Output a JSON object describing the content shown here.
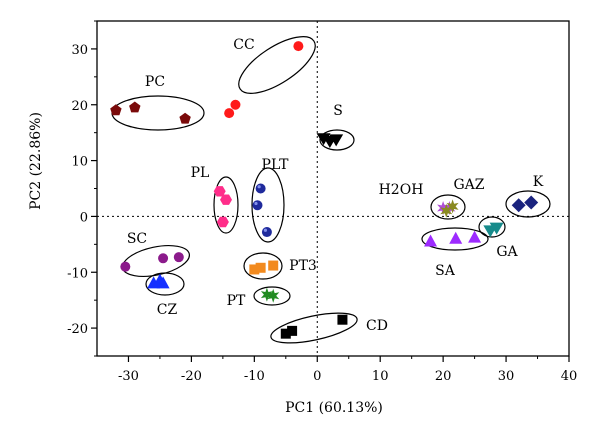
{
  "chart_data": {
    "type": "scatter",
    "xlabel": "PC1 (60.13%)",
    "ylabel": "PC2 (22.86%)",
    "xlim": [
      -35,
      40
    ],
    "ylim": [
      -25,
      35
    ],
    "xticks": [
      -30,
      -20,
      -10,
      0,
      10,
      20,
      30,
      40
    ],
    "yticks": [
      -20,
      -10,
      0,
      10,
      20,
      30
    ],
    "reference_lines": {
      "x": 0,
      "y": 0,
      "style": "dotted"
    },
    "legend": "none",
    "groups": [
      {
        "name": "CC",
        "marker": "circle",
        "color": "#ff1a1a",
        "points": [
          [
            -14,
            18.5
          ],
          [
            -13,
            20
          ],
          [
            -3,
            30.5
          ]
        ]
      },
      {
        "name": "PC",
        "marker": "pentagon",
        "color": "#7a0a0a",
        "points": [
          [
            -32,
            19
          ],
          [
            -29,
            19.5
          ],
          [
            -21,
            17.5
          ]
        ]
      },
      {
        "name": "S",
        "marker": "triangle-down",
        "color": "#000000",
        "points": [
          [
            1,
            14
          ],
          [
            2,
            13.5
          ],
          [
            3,
            13.8
          ]
        ]
      },
      {
        "name": "PL",
        "marker": "hexagon",
        "color": "#ff2d8a",
        "points": [
          [
            -15.5,
            4.5
          ],
          [
            -14.5,
            3
          ],
          [
            -15,
            -1
          ]
        ]
      },
      {
        "name": "PLT",
        "marker": "sphere",
        "color": "#1f2a9c",
        "points": [
          [
            -9,
            5
          ],
          [
            -9.5,
            2
          ],
          [
            -8,
            -2.8
          ]
        ]
      },
      {
        "name": "H2OH",
        "marker": "star",
        "color": "#b04fd6",
        "points": [
          [
            20,
            1.5
          ],
          [
            21,
            1.5
          ]
        ]
      },
      {
        "name": "GAZ",
        "marker": "star",
        "color": "#8a8a20",
        "points": [
          [
            20.5,
            1
          ],
          [
            21.5,
            1.8
          ]
        ]
      },
      {
        "name": "K",
        "marker": "diamond",
        "color": "#1a237e",
        "points": [
          [
            32,
            2
          ],
          [
            34,
            2.5
          ]
        ]
      },
      {
        "name": "GA",
        "marker": "triangle-down",
        "color": "#178b8b",
        "points": [
          [
            27.5,
            -2.5
          ],
          [
            28.5,
            -2
          ]
        ]
      },
      {
        "name": "SA",
        "marker": "triangle-up",
        "color": "#9d2bff",
        "points": [
          [
            18,
            -4.5
          ],
          [
            22,
            -4
          ],
          [
            25,
            -3.8
          ]
        ]
      },
      {
        "name": "SC",
        "marker": "circle",
        "color": "#8b1a8b",
        "points": [
          [
            -30.5,
            -9
          ],
          [
            -24.5,
            -7.5
          ],
          [
            -22,
            -7.3
          ]
        ]
      },
      {
        "name": "PT3",
        "marker": "square",
        "color": "#f28a1e",
        "points": [
          [
            -10,
            -9.5
          ],
          [
            -9,
            -9.2
          ],
          [
            -7,
            -8.8
          ]
        ]
      },
      {
        "name": "CZ",
        "marker": "triangle-up",
        "color": "#1530ff",
        "points": [
          [
            -26,
            -12
          ],
          [
            -25,
            -11.5
          ],
          [
            -24.5,
            -12
          ]
        ]
      },
      {
        "name": "PT",
        "marker": "star",
        "color": "#228b22",
        "points": [
          [
            -8,
            -14
          ],
          [
            -7,
            -14.2
          ]
        ]
      },
      {
        "name": "CD",
        "marker": "square",
        "color": "#000000",
        "points": [
          [
            -5,
            -21
          ],
          [
            -4,
            -20.5
          ],
          [
            4,
            -18.5
          ]
        ]
      }
    ]
  }
}
